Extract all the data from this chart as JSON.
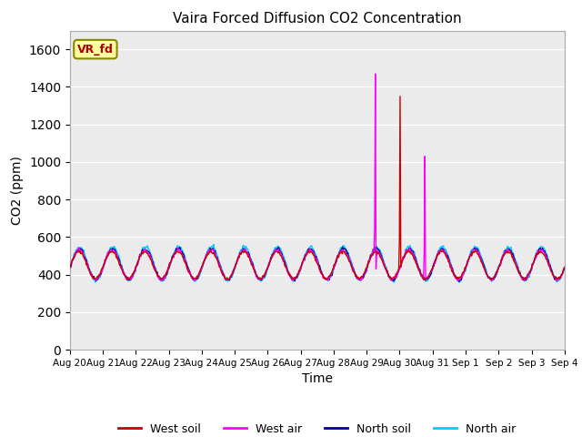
{
  "title": "Vaira Forced Diffusion CO2 Concentration",
  "xlabel": "Time",
  "ylabel": "CO2 (ppm)",
  "ylim": [
    0,
    1700
  ],
  "yticks": [
    0,
    200,
    400,
    600,
    800,
    1000,
    1200,
    1400,
    1600
  ],
  "background_color": "#ebebeb",
  "legend_labels": [
    "West soil",
    "West air",
    "North soil",
    "North air"
  ],
  "annotation_label": "VR_fd",
  "annotation_color": "#aa0000",
  "annotation_bg": "#ffffa0",
  "annotation_edge": "#888800",
  "n_days": 15,
  "colors": {
    "west_soil": "#cc0000",
    "west_air": "#ff00ff",
    "north_soil": "#000099",
    "north_air": "#00ccff"
  }
}
